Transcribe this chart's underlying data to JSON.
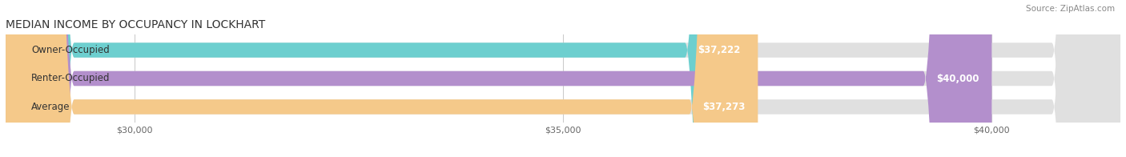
{
  "title": "MEDIAN INCOME BY OCCUPANCY IN LOCKHART",
  "source": "Source: ZipAtlas.com",
  "categories": [
    "Owner-Occupied",
    "Renter-Occupied",
    "Average"
  ],
  "values": [
    37222,
    40000,
    37273
  ],
  "labels": [
    "$37,222",
    "$40,000",
    "$37,273"
  ],
  "bar_colors": [
    "#6dcfcf",
    "#b38fcc",
    "#f5c98a"
  ],
  "bar_bg_color": "#e0e0e0",
  "xmin": 28500,
  "xmax": 41500,
  "xticks": [
    30000,
    35000,
    40000
  ],
  "xtick_labels": [
    "$30,000",
    "$35,000",
    "$40,000"
  ],
  "background_color": "#ffffff",
  "title_fontsize": 10,
  "source_fontsize": 7.5,
  "label_fontsize": 8.5,
  "category_fontsize": 8.5
}
